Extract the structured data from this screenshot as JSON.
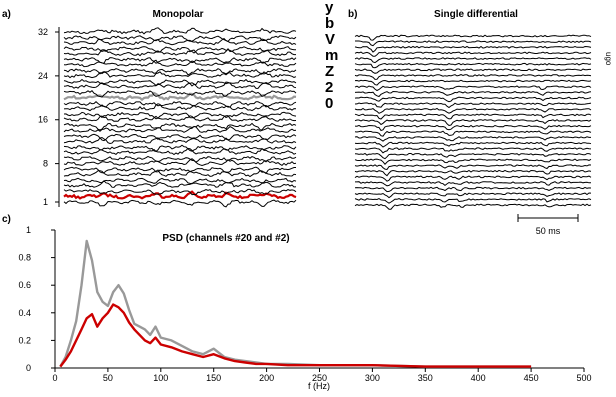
{
  "chart_data": [
    {
      "type": "line",
      "panel_label": "a)",
      "title": "Monopolar",
      "y_tick_labels": [
        "1",
        "8",
        "16",
        "24",
        "32"
      ],
      "channel_count": 32,
      "highlighted_channels": [
        {
          "channel": 20,
          "color": "#999999"
        },
        {
          "channel": 2,
          "color": "#cc0000"
        }
      ],
      "side_text": "ybVmZ20"
    },
    {
      "type": "line",
      "panel_label": "b)",
      "title": "Single differential",
      "channel_count": 31,
      "scale_bar": "50 ms",
      "side_text": "ugo"
    },
    {
      "type": "line",
      "panel_label": "c)",
      "title": "PSD (channels #20 and #2)",
      "xlabel": "f (Hz)",
      "ylabel": "",
      "xlim": [
        0,
        500
      ],
      "ylim": [
        0,
        1
      ],
      "xticks": [
        0,
        50,
        100,
        150,
        200,
        250,
        300,
        350,
        400,
        450,
        500
      ],
      "yticks": [
        {
          "value": 0,
          "label": "0"
        },
        {
          "value": 0.2,
          "label": "0.2"
        },
        {
          "value": 0.4,
          "label": "0.4"
        },
        {
          "value": 0.6,
          "label": "0.6"
        },
        {
          "value": 0.8,
          "label": "0.8"
        },
        {
          "value": 1,
          "label": "1"
        }
      ],
      "series": [
        {
          "color": "#999999",
          "x": [
            5,
            10,
            15,
            20,
            25,
            30,
            35,
            40,
            45,
            50,
            55,
            60,
            65,
            70,
            75,
            80,
            85,
            90,
            95,
            100,
            110,
            120,
            130,
            140,
            150,
            160,
            170,
            180,
            190,
            200,
            220,
            250,
            300,
            350,
            400,
            450
          ],
          "y": [
            0.01,
            0.08,
            0.2,
            0.34,
            0.6,
            0.92,
            0.78,
            0.55,
            0.48,
            0.45,
            0.55,
            0.6,
            0.54,
            0.42,
            0.32,
            0.3,
            0.28,
            0.24,
            0.3,
            0.22,
            0.2,
            0.16,
            0.12,
            0.1,
            0.14,
            0.08,
            0.06,
            0.05,
            0.04,
            0.03,
            0.03,
            0.02,
            0.02,
            0.01,
            0.01,
            0.01
          ]
        },
        {
          "color": "#cc0000",
          "x": [
            5,
            10,
            15,
            20,
            25,
            30,
            35,
            40,
            45,
            50,
            55,
            60,
            65,
            70,
            75,
            80,
            85,
            90,
            95,
            100,
            110,
            120,
            130,
            140,
            150,
            160,
            170,
            180,
            190,
            200,
            220,
            250,
            300,
            350,
            400,
            450
          ],
          "y": [
            0.01,
            0.06,
            0.12,
            0.2,
            0.28,
            0.36,
            0.39,
            0.3,
            0.36,
            0.4,
            0.46,
            0.44,
            0.4,
            0.33,
            0.28,
            0.24,
            0.2,
            0.18,
            0.22,
            0.17,
            0.15,
            0.12,
            0.1,
            0.08,
            0.1,
            0.07,
            0.05,
            0.04,
            0.03,
            0.03,
            0.02,
            0.02,
            0.02,
            0.01,
            0.01,
            0.01
          ]
        }
      ]
    }
  ]
}
